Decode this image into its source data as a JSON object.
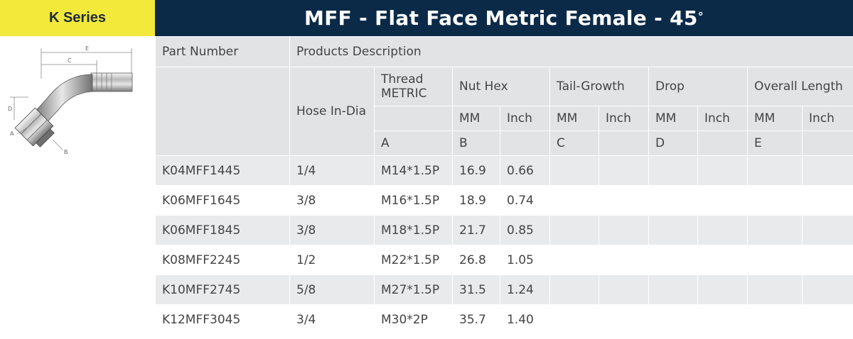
{
  "series_label": "K Series",
  "title": "MFF - Flat Face Metric Female - 45",
  "title_degree": "°",
  "diagram_labels": {
    "e": "E",
    "c": "C",
    "d": "D",
    "a": "A",
    "b": "B"
  },
  "headers": {
    "part_number": "Part Number",
    "products_description": "Products Description",
    "hose_in_dia": "Hose In-Dia",
    "thread_metric": "Thread METRIC",
    "nut_hex": "Nut Hex",
    "tail_growth": "Tail-Growth",
    "drop": "Drop",
    "overall_length": "Overall Length",
    "mm": "MM",
    "inch": "Inch",
    "letter_a": "A",
    "letter_b": "B",
    "letter_c": "C",
    "letter_d": "D",
    "letter_e": "E"
  },
  "rows": [
    {
      "part": "K04MFF1445",
      "hose": "1/4",
      "thread": "M14*1.5P",
      "nut_mm": "16.9",
      "nut_inch": "0.66"
    },
    {
      "part": "K06MFF1645",
      "hose": "3/8",
      "thread": "M16*1.5P",
      "nut_mm": "18.9",
      "nut_inch": "0.74"
    },
    {
      "part": "K06MFF1845",
      "hose": "3/8",
      "thread": "M18*1.5P",
      "nut_mm": "21.7",
      "nut_inch": "0.85"
    },
    {
      "part": "K08MFF2245",
      "hose": "1/2",
      "thread": "M22*1.5P",
      "nut_mm": "26.8",
      "nut_inch": "1.05"
    },
    {
      "part": "K10MFF2745",
      "hose": "5/8",
      "thread": "M27*1.5P",
      "nut_mm": "31.5",
      "nut_inch": "1.24"
    },
    {
      "part": "K12MFF3045",
      "hose": "3/4",
      "thread": "M30*2P",
      "nut_mm": "35.7",
      "nut_inch": "1.40"
    }
  ],
  "colors": {
    "title_bg": "#0a2a48",
    "badge_bg": "#f2e93a",
    "header_bg": "#e2e3e5",
    "row_shade": "#e9eaec"
  }
}
